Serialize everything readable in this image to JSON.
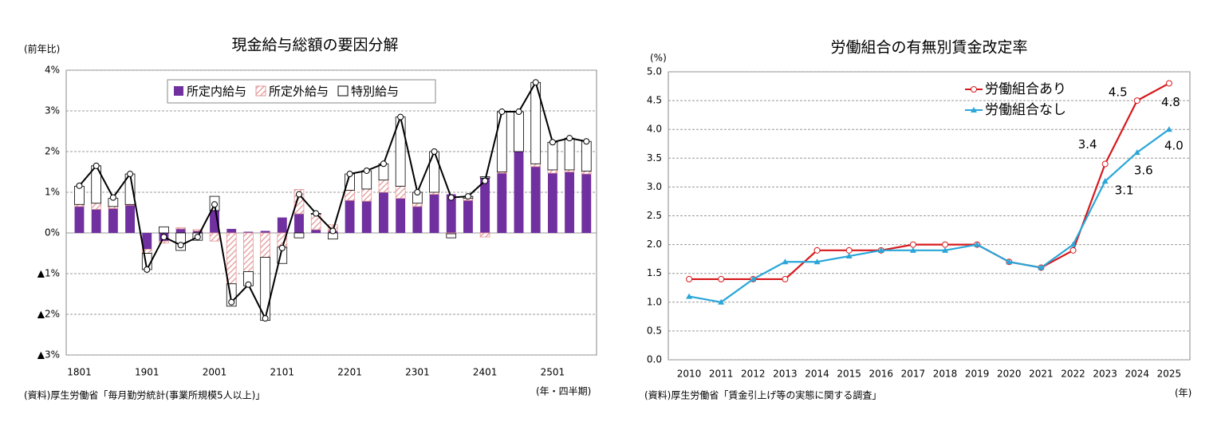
{
  "chart_data": [
    {
      "type": "stacked-bar",
      "title": "現金給与総額の要因分解",
      "y_label": "(前年比)",
      "x_label": "(年・四半期)",
      "source": "(資料)厚生労働省「毎月勤労統計(事業所規模5人以上)」",
      "categories": [
        "1801",
        null,
        null,
        null,
        "1901",
        null,
        null,
        null,
        "2001",
        null,
        null,
        null,
        "2101",
        null,
        null,
        null,
        "2201",
        null,
        null,
        null,
        "2301",
        null,
        null,
        null,
        "2401",
        null,
        null,
        null,
        "2501",
        null,
        null
      ],
      "series": [
        {
          "name": "所定内給与",
          "color": "#7030a0",
          "values": [
            0.65,
            0.58,
            0.6,
            0.68,
            -0.4,
            -0.2,
            0.1,
            0.05,
            0.55,
            0.1,
            0.03,
            0.05,
            0.38,
            0.47,
            0.08,
            0.05,
            0.8,
            0.78,
            1.0,
            0.85,
            0.65,
            0.95,
            0.95,
            0.8,
            1.35,
            1.47,
            2.0,
            1.63,
            1.47,
            1.5,
            1.45
          ]
        },
        {
          "name": "所定外給与",
          "color": "#e39595",
          "values": [
            0.05,
            0.15,
            0.05,
            0.02,
            -0.1,
            -0.05,
            0.03,
            0.03,
            -0.2,
            -1.25,
            -0.95,
            -0.6,
            -0.35,
            0.6,
            0.38,
            0.15,
            0.25,
            0.3,
            0.3,
            0.3,
            0.08,
            0.05,
            -0.02,
            0.05,
            -0.1,
            0.03,
            0.0,
            0.07,
            0.08,
            0.05,
            0.07
          ]
        },
        {
          "name": "特別給与",
          "color": "#ffffff",
          "values": [
            0.45,
            0.92,
            0.2,
            0.75,
            -0.4,
            0.15,
            -0.43,
            -0.18,
            0.35,
            -0.55,
            -0.35,
            -1.55,
            -0.4,
            -0.12,
            0.02,
            -0.15,
            0.4,
            0.45,
            0.4,
            1.7,
            0.27,
            1.0,
            -0.1,
            0.05,
            0.03,
            1.48,
            0.98,
            2.0,
            0.68,
            0.78,
            0.73
          ]
        }
      ],
      "total": {
        "color": "#000000",
        "values": [
          1.16,
          1.65,
          0.87,
          1.45,
          -0.9,
          -0.1,
          -0.3,
          -0.1,
          0.7,
          -1.7,
          -1.27,
          -2.1,
          -0.37,
          0.95,
          0.48,
          0.05,
          1.45,
          1.53,
          1.7,
          2.85,
          1.0,
          2.0,
          0.87,
          0.9,
          1.28,
          2.98,
          2.98,
          3.7,
          2.23,
          2.33,
          2.25
        ]
      },
      "ylim": [
        -3,
        4
      ],
      "yticks": [
        {
          "value": -3,
          "label": "▲3%"
        },
        {
          "value": -2,
          "label": "▲2%"
        },
        {
          "value": -1,
          "label": "▲1%"
        },
        {
          "value": 0,
          "label": "0%"
        },
        {
          "value": 1,
          "label": "1%"
        },
        {
          "value": 2,
          "label": "2%"
        },
        {
          "value": 3,
          "label": "3%"
        },
        {
          "value": 4,
          "label": "4%"
        }
      ],
      "grid": true,
      "legend": "top"
    },
    {
      "type": "line",
      "title": "労働組合の有無別賃金改定率",
      "y_label": "(%)",
      "x_label": "(年)",
      "source": "(資料)厚生労働省「賃金引上げ等の実態に関する調査」",
      "categories": [
        "2010",
        "2011",
        "2012",
        "2013",
        "2014",
        "2015",
        "2016",
        "2017",
        "2018",
        "2019",
        "2020",
        "2021",
        "2022",
        "2023",
        "2024",
        "2025"
      ],
      "series": [
        {
          "name": "労働組合あり",
          "color": "#d7191c",
          "marker": "circle",
          "values": [
            1.4,
            1.4,
            1.4,
            1.4,
            1.9,
            1.9,
            1.9,
            2.0,
            2.0,
            2.0,
            1.7,
            1.6,
            1.9,
            3.4,
            4.5,
            4.8
          ],
          "value_labels": [
            null,
            null,
            null,
            null,
            null,
            null,
            null,
            null,
            null,
            null,
            null,
            null,
            null,
            "3.4",
            "4.5",
            "4.8"
          ]
        },
        {
          "name": "労働組合なし",
          "color": "#2aa6d8",
          "marker": "triangle",
          "values": [
            1.1,
            1.0,
            1.4,
            1.7,
            1.7,
            1.8,
            1.9,
            1.9,
            1.9,
            2.0,
            1.7,
            1.6,
            2.0,
            3.1,
            3.6,
            4.0
          ],
          "value_labels": [
            null,
            null,
            null,
            null,
            null,
            null,
            null,
            null,
            null,
            null,
            null,
            null,
            null,
            "3.1",
            "3.6",
            "4.0"
          ]
        }
      ],
      "ylim": [
        0,
        5
      ],
      "yticks": [
        {
          "value": 0,
          "label": "0.0"
        },
        {
          "value": 0.5,
          "label": "0.5"
        },
        {
          "value": 1,
          "label": "1.0"
        },
        {
          "value": 1.5,
          "label": "1.5"
        },
        {
          "value": 2,
          "label": "2.0"
        },
        {
          "value": 2.5,
          "label": "2.5"
        },
        {
          "value": 3,
          "label": "3.0"
        },
        {
          "value": 3.5,
          "label": "3.5"
        },
        {
          "value": 4,
          "label": "4.0"
        },
        {
          "value": 4.5,
          "label": "4.5"
        },
        {
          "value": 5,
          "label": "5.0"
        }
      ],
      "grid": true,
      "legend": "top-right"
    }
  ]
}
